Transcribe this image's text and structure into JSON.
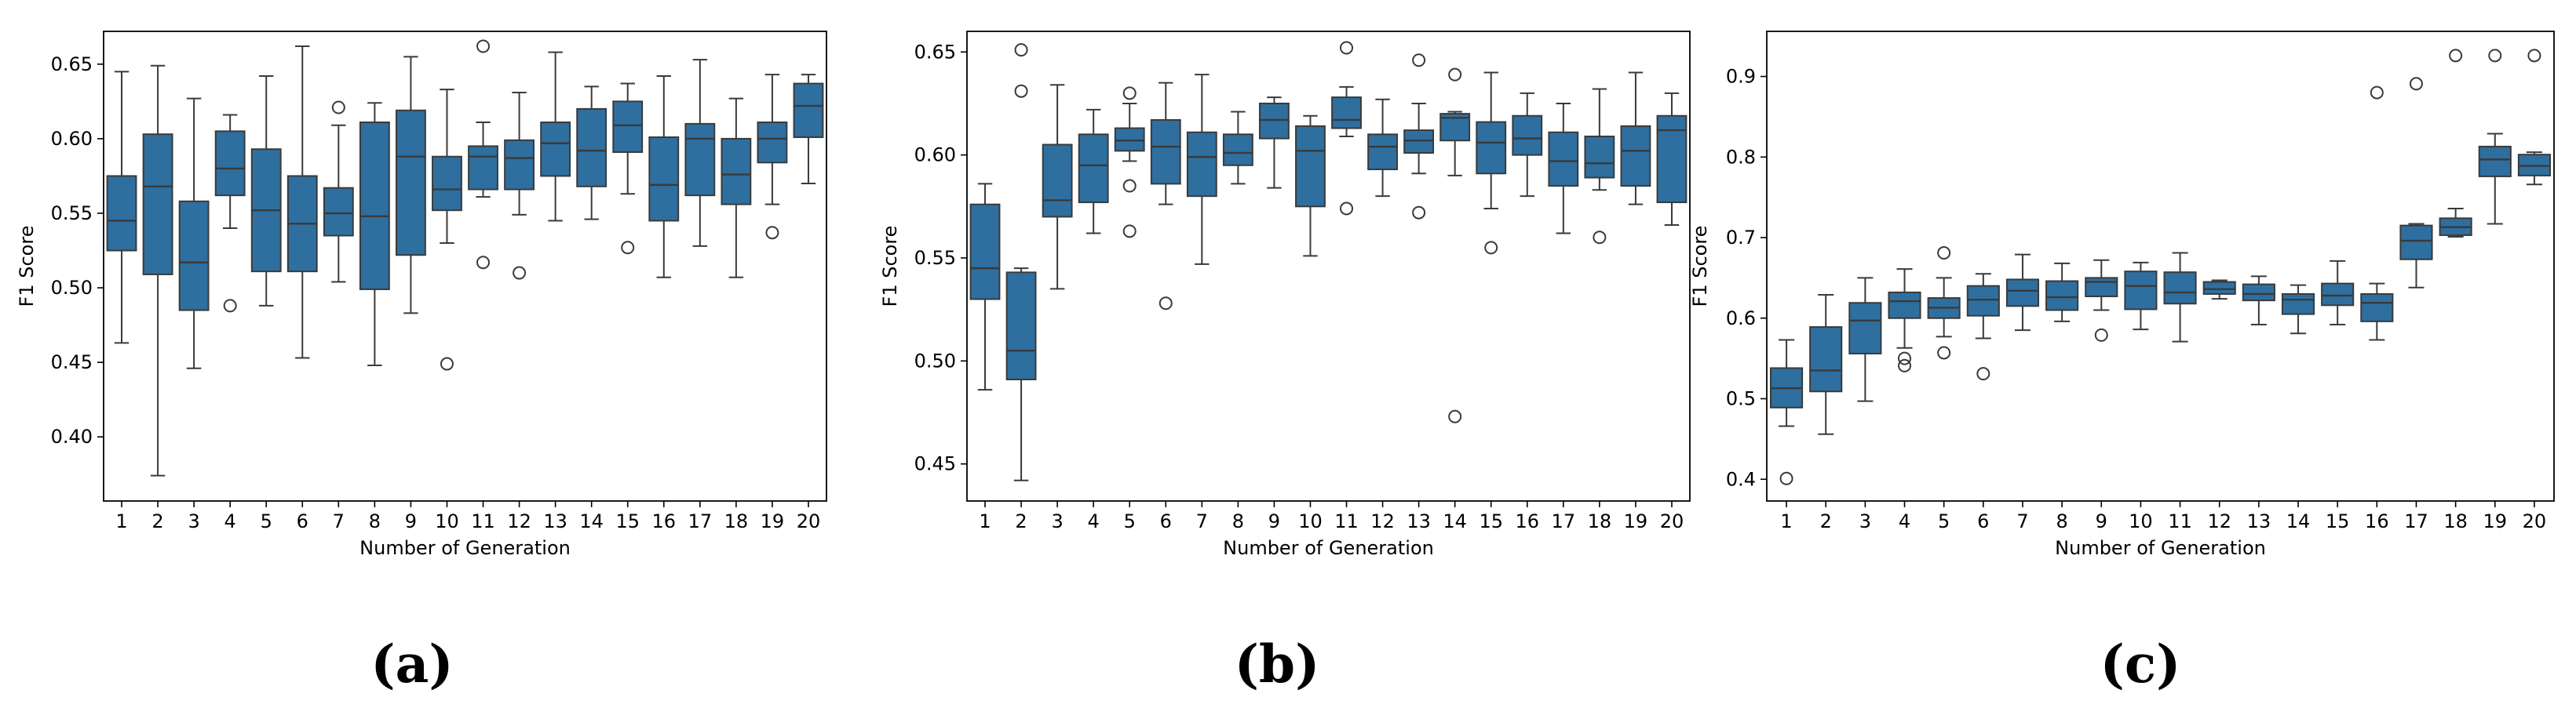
{
  "chart_data": [
    {
      "type": "box",
      "caption": "(a)",
      "xlabel": "Number of Generation",
      "ylabel": "F1 Score",
      "categories": [
        "1",
        "2",
        "3",
        "4",
        "5",
        "6",
        "7",
        "8",
        "9",
        "10",
        "11",
        "12",
        "13",
        "14",
        "15",
        "16",
        "17",
        "18",
        "19",
        "20"
      ],
      "ylim": [
        0.357,
        0.672
      ],
      "yticks": [
        0.4,
        0.45,
        0.5,
        0.55,
        0.6,
        0.65
      ],
      "ytick_labels": [
        "0.40",
        "0.45",
        "0.50",
        "0.55",
        "0.60",
        "0.65"
      ],
      "color": "#2E6FA0",
      "boxes": [
        {
          "q1": 0.525,
          "median": 0.545,
          "q3": 0.575,
          "whislo": 0.463,
          "whishi": 0.645,
          "fliers": []
        },
        {
          "q1": 0.509,
          "median": 0.568,
          "q3": 0.603,
          "whislo": 0.374,
          "whishi": 0.649,
          "fliers": []
        },
        {
          "q1": 0.485,
          "median": 0.517,
          "q3": 0.558,
          "whislo": 0.446,
          "whishi": 0.627,
          "fliers": []
        },
        {
          "q1": 0.562,
          "median": 0.58,
          "q3": 0.605,
          "whislo": 0.54,
          "whishi": 0.616,
          "fliers": [
            0.488
          ]
        },
        {
          "q1": 0.511,
          "median": 0.552,
          "q3": 0.593,
          "whislo": 0.488,
          "whishi": 0.642,
          "fliers": []
        },
        {
          "q1": 0.511,
          "median": 0.543,
          "q3": 0.575,
          "whislo": 0.453,
          "whishi": 0.662,
          "fliers": []
        },
        {
          "q1": 0.535,
          "median": 0.55,
          "q3": 0.567,
          "whislo": 0.504,
          "whishi": 0.609,
          "fliers": [
            0.621
          ]
        },
        {
          "q1": 0.499,
          "median": 0.548,
          "q3": 0.611,
          "whislo": 0.448,
          "whishi": 0.624,
          "fliers": []
        },
        {
          "q1": 0.522,
          "median": 0.588,
          "q3": 0.619,
          "whislo": 0.483,
          "whishi": 0.655,
          "fliers": []
        },
        {
          "q1": 0.552,
          "median": 0.566,
          "q3": 0.588,
          "whislo": 0.53,
          "whishi": 0.633,
          "fliers": [
            0.449
          ]
        },
        {
          "q1": 0.566,
          "median": 0.588,
          "q3": 0.595,
          "whislo": 0.561,
          "whishi": 0.611,
          "fliers": [
            0.662,
            0.517
          ]
        },
        {
          "q1": 0.566,
          "median": 0.587,
          "q3": 0.599,
          "whislo": 0.549,
          "whishi": 0.631,
          "fliers": [
            0.51
          ]
        },
        {
          "q1": 0.575,
          "median": 0.597,
          "q3": 0.611,
          "whislo": 0.545,
          "whishi": 0.658,
          "fliers": []
        },
        {
          "q1": 0.568,
          "median": 0.592,
          "q3": 0.62,
          "whislo": 0.546,
          "whishi": 0.635,
          "fliers": []
        },
        {
          "q1": 0.591,
          "median": 0.609,
          "q3": 0.625,
          "whislo": 0.563,
          "whishi": 0.637,
          "fliers": [
            0.527
          ]
        },
        {
          "q1": 0.545,
          "median": 0.569,
          "q3": 0.601,
          "whislo": 0.507,
          "whishi": 0.642,
          "fliers": []
        },
        {
          "q1": 0.562,
          "median": 0.6,
          "q3": 0.61,
          "whislo": 0.528,
          "whishi": 0.653,
          "fliers": []
        },
        {
          "q1": 0.556,
          "median": 0.576,
          "q3": 0.6,
          "whislo": 0.507,
          "whishi": 0.627,
          "fliers": []
        },
        {
          "q1": 0.584,
          "median": 0.6,
          "q3": 0.611,
          "whislo": 0.556,
          "whishi": 0.643,
          "fliers": [
            0.537
          ]
        },
        {
          "q1": 0.601,
          "median": 0.622,
          "q3": 0.637,
          "whislo": 0.57,
          "whishi": 0.643,
          "fliers": []
        }
      ]
    },
    {
      "type": "box",
      "caption": "(b)",
      "xlabel": "Number of Generation",
      "ylabel": "F1 Score",
      "categories": [
        "1",
        "2",
        "3",
        "4",
        "5",
        "6",
        "7",
        "8",
        "9",
        "10",
        "11",
        "12",
        "13",
        "14",
        "15",
        "16",
        "17",
        "18",
        "19",
        "20"
      ],
      "ylim": [
        0.432,
        0.66
      ],
      "yticks": [
        0.45,
        0.5,
        0.55,
        0.6,
        0.65
      ],
      "ytick_labels": [
        "0.45",
        "0.50",
        "0.55",
        "0.60",
        "0.65"
      ],
      "color": "#2E6FA0",
      "boxes": [
        {
          "q1": 0.53,
          "median": 0.545,
          "q3": 0.576,
          "whislo": 0.486,
          "whishi": 0.586,
          "fliers": []
        },
        {
          "q1": 0.491,
          "median": 0.505,
          "q3": 0.543,
          "whislo": 0.442,
          "whishi": 0.545,
          "fliers": [
            0.651,
            0.631
          ]
        },
        {
          "q1": 0.57,
          "median": 0.578,
          "q3": 0.605,
          "whislo": 0.535,
          "whishi": 0.634,
          "fliers": []
        },
        {
          "q1": 0.577,
          "median": 0.595,
          "q3": 0.61,
          "whislo": 0.562,
          "whishi": 0.622,
          "fliers": []
        },
        {
          "q1": 0.602,
          "median": 0.607,
          "q3": 0.613,
          "whislo": 0.597,
          "whishi": 0.625,
          "fliers": [
            0.63,
            0.585,
            0.563
          ]
        },
        {
          "q1": 0.586,
          "median": 0.604,
          "q3": 0.617,
          "whislo": 0.576,
          "whishi": 0.635,
          "fliers": [
            0.528
          ]
        },
        {
          "q1": 0.58,
          "median": 0.599,
          "q3": 0.611,
          "whislo": 0.547,
          "whishi": 0.639,
          "fliers": []
        },
        {
          "q1": 0.595,
          "median": 0.601,
          "q3": 0.61,
          "whislo": 0.586,
          "whishi": 0.621,
          "fliers": []
        },
        {
          "q1": 0.608,
          "median": 0.617,
          "q3": 0.625,
          "whislo": 0.584,
          "whishi": 0.628,
          "fliers": []
        },
        {
          "q1": 0.575,
          "median": 0.602,
          "q3": 0.614,
          "whislo": 0.551,
          "whishi": 0.619,
          "fliers": []
        },
        {
          "q1": 0.613,
          "median": 0.617,
          "q3": 0.628,
          "whislo": 0.609,
          "whishi": 0.633,
          "fliers": [
            0.652,
            0.574
          ]
        },
        {
          "q1": 0.593,
          "median": 0.604,
          "q3": 0.61,
          "whislo": 0.58,
          "whishi": 0.627,
          "fliers": []
        },
        {
          "q1": 0.601,
          "median": 0.607,
          "q3": 0.612,
          "whislo": 0.591,
          "whishi": 0.625,
          "fliers": [
            0.646,
            0.572
          ]
        },
        {
          "q1": 0.607,
          "median": 0.618,
          "q3": 0.62,
          "whislo": 0.59,
          "whishi": 0.621,
          "fliers": [
            0.639,
            0.473
          ]
        },
        {
          "q1": 0.591,
          "median": 0.606,
          "q3": 0.616,
          "whislo": 0.574,
          "whishi": 0.64,
          "fliers": [
            0.555
          ]
        },
        {
          "q1": 0.6,
          "median": 0.608,
          "q3": 0.619,
          "whislo": 0.58,
          "whishi": 0.63,
          "fliers": []
        },
        {
          "q1": 0.585,
          "median": 0.597,
          "q3": 0.611,
          "whislo": 0.562,
          "whishi": 0.625,
          "fliers": []
        },
        {
          "q1": 0.589,
          "median": 0.596,
          "q3": 0.609,
          "whislo": 0.583,
          "whishi": 0.632,
          "fliers": [
            0.56
          ]
        },
        {
          "q1": 0.585,
          "median": 0.602,
          "q3": 0.614,
          "whislo": 0.576,
          "whishi": 0.64,
          "fliers": []
        },
        {
          "q1": 0.577,
          "median": 0.612,
          "q3": 0.619,
          "whislo": 0.566,
          "whishi": 0.63,
          "fliers": []
        }
      ]
    },
    {
      "type": "box",
      "caption": "(c)",
      "xlabel": "Number of Generation",
      "ylabel": "F1 Score",
      "categories": [
        "1",
        "2",
        "3",
        "4",
        "5",
        "6",
        "7",
        "8",
        "9",
        "10",
        "11",
        "12",
        "13",
        "14",
        "15",
        "16",
        "17",
        "18",
        "19",
        "20"
      ],
      "ylim": [
        0.373,
        0.956
      ],
      "yticks": [
        0.4,
        0.5,
        0.6,
        0.7,
        0.8,
        0.9
      ],
      "ytick_labels": [
        "0.4",
        "0.5",
        "0.6",
        "0.7",
        "0.8",
        "0.9"
      ],
      "color": "#2E6FA0",
      "boxes": [
        {
          "q1": 0.489,
          "median": 0.513,
          "q3": 0.538,
          "whislo": 0.466,
          "whishi": 0.573,
          "fliers": [
            0.401
          ]
        },
        {
          "q1": 0.509,
          "median": 0.535,
          "q3": 0.589,
          "whislo": 0.456,
          "whishi": 0.629,
          "fliers": []
        },
        {
          "q1": 0.556,
          "median": 0.597,
          "q3": 0.619,
          "whislo": 0.497,
          "whishi": 0.65,
          "fliers": []
        },
        {
          "q1": 0.6,
          "median": 0.621,
          "q3": 0.632,
          "whislo": 0.563,
          "whishi": 0.661,
          "fliers": [
            0.55,
            0.541
          ]
        },
        {
          "q1": 0.6,
          "median": 0.613,
          "q3": 0.625,
          "whislo": 0.577,
          "whishi": 0.65,
          "fliers": [
            0.681,
            0.557
          ]
        },
        {
          "q1": 0.603,
          "median": 0.623,
          "q3": 0.64,
          "whislo": 0.575,
          "whishi": 0.655,
          "fliers": [
            0.531
          ]
        },
        {
          "q1": 0.615,
          "median": 0.634,
          "q3": 0.648,
          "whislo": 0.585,
          "whishi": 0.679,
          "fliers": []
        },
        {
          "q1": 0.61,
          "median": 0.626,
          "q3": 0.646,
          "whislo": 0.596,
          "whishi": 0.668,
          "fliers": []
        },
        {
          "q1": 0.627,
          "median": 0.645,
          "q3": 0.65,
          "whislo": 0.61,
          "whishi": 0.672,
          "fliers": [
            0.579
          ]
        },
        {
          "q1": 0.611,
          "median": 0.64,
          "q3": 0.658,
          "whislo": 0.586,
          "whishi": 0.669,
          "fliers": []
        },
        {
          "q1": 0.618,
          "median": 0.632,
          "q3": 0.657,
          "whislo": 0.571,
          "whishi": 0.681,
          "fliers": []
        },
        {
          "q1": 0.63,
          "median": 0.636,
          "q3": 0.645,
          "whislo": 0.624,
          "whishi": 0.647,
          "fliers": []
        },
        {
          "q1": 0.622,
          "median": 0.63,
          "q3": 0.642,
          "whislo": 0.592,
          "whishi": 0.652,
          "fliers": []
        },
        {
          "q1": 0.605,
          "median": 0.623,
          "q3": 0.63,
          "whislo": 0.581,
          "whishi": 0.641,
          "fliers": []
        },
        {
          "q1": 0.616,
          "median": 0.628,
          "q3": 0.643,
          "whislo": 0.592,
          "whishi": 0.671,
          "fliers": []
        },
        {
          "q1": 0.596,
          "median": 0.619,
          "q3": 0.63,
          "whislo": 0.573,
          "whishi": 0.643,
          "fliers": [
            0.88
          ]
        },
        {
          "q1": 0.673,
          "median": 0.696,
          "q3": 0.715,
          "whislo": 0.638,
          "whishi": 0.717,
          "fliers": [
            0.891
          ]
        },
        {
          "q1": 0.703,
          "median": 0.713,
          "q3": 0.724,
          "whislo": 0.701,
          "whishi": 0.736,
          "fliers": [
            0.926
          ]
        },
        {
          "q1": 0.776,
          "median": 0.797,
          "q3": 0.813,
          "whislo": 0.717,
          "whishi": 0.829,
          "fliers": [
            0.926
          ]
        },
        {
          "q1": 0.777,
          "median": 0.789,
          "q3": 0.803,
          "whislo": 0.766,
          "whishi": 0.806,
          "fliers": [
            0.926
          ]
        }
      ]
    }
  ]
}
